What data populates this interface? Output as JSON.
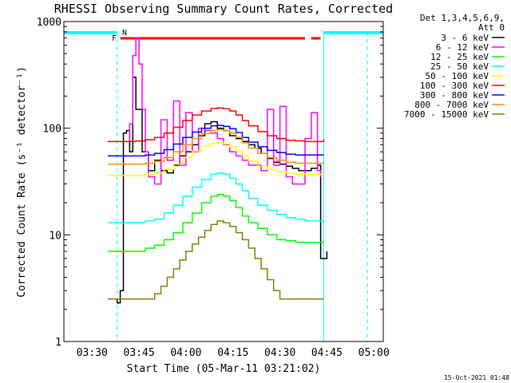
{
  "chart_data": {
    "type": "line",
    "title": "RHESSI Observing Summary Count Rates, Corrected",
    "xlabel": "Start Time (05-Mar-11 03:21:02)",
    "ylabel": "Corrected Count Rate (s⁻¹ detector⁻¹)",
    "y_scale": "log",
    "ylim": [
      1,
      1000
    ],
    "y_ticks": [
      "1",
      "10",
      "100",
      "1000"
    ],
    "xlim": [
      "03:21",
      "05:03"
    ],
    "x_ticks": [
      "03:30",
      "03:45",
      "04:00",
      "04:15",
      "04:30",
      "04:45",
      "05:00"
    ],
    "grid": false,
    "legend_position": "top-right",
    "legend_header": [
      "Det 1,3,4,5,6,9,",
      "Att 0"
    ],
    "series": [
      {
        "name": "3 - 6 keV",
        "color": "#000000",
        "x": [
          "03:36",
          "03:38",
          "03:39",
          "03:40",
          "03:41",
          "03:42",
          "03:43",
          "03:44",
          "03:46",
          "03:48",
          "03:50",
          "03:52",
          "03:54",
          "03:56",
          "03:58",
          "04:00",
          "04:02",
          "04:04",
          "04:06",
          "04:08",
          "04:10",
          "04:12",
          "04:14",
          "04:16",
          "04:18",
          "04:20",
          "04:22",
          "04:24",
          "04:26",
          "04:28",
          "04:30",
          "04:32",
          "04:34",
          "04:36",
          "04:38",
          "04:40",
          "04:42",
          "04:43",
          "04:44",
          "04:45"
        ],
        "y": [
          2.5,
          2.3,
          3.0,
          90,
          95,
          60,
          300,
          150,
          60,
          40,
          50,
          40,
          38,
          45,
          55,
          60,
          70,
          85,
          110,
          115,
          100,
          95,
          85,
          80,
          75,
          70,
          65,
          58,
          52,
          48,
          46,
          44,
          42,
          40,
          40,
          42,
          45,
          6,
          6,
          7
        ]
      },
      {
        "name": "6 - 12 keV",
        "color": "#ff00ff",
        "x": [
          "03:41",
          "03:42",
          "03:43",
          "03:44",
          "03:45",
          "03:46",
          "03:47",
          "03:48",
          "03:50",
          "03:52",
          "03:54",
          "03:56",
          "03:58",
          "04:00",
          "04:02",
          "04:04",
          "04:06",
          "04:08",
          "04:10",
          "04:12",
          "04:14",
          "04:16",
          "04:18",
          "04:20",
          "04:22",
          "04:24",
          "04:26",
          "04:28",
          "04:30",
          "04:32",
          "04:34",
          "04:36",
          "04:38",
          "04:40",
          "04:42",
          "04:43"
        ],
        "y": [
          75,
          110,
          480,
          700,
          400,
          150,
          60,
          35,
          30,
          120,
          50,
          180,
          45,
          140,
          60,
          100,
          95,
          90,
          80,
          70,
          60,
          55,
          50,
          45,
          45,
          40,
          150,
          45,
          160,
          35,
          30,
          30,
          80,
          140,
          40,
          35
        ]
      },
      {
        "name": "12 - 25 keV",
        "color": "#00ff00",
        "x": [
          "03:35",
          "03:38",
          "03:41",
          "03:44",
          "03:47",
          "03:50",
          "03:53",
          "03:56",
          "03:59",
          "04:02",
          "04:05",
          "04:08",
          "04:10",
          "04:12",
          "04:14",
          "04:16",
          "04:18",
          "04:20",
          "04:23",
          "04:26",
          "04:29",
          "04:32",
          "04:35",
          "04:38",
          "04:41",
          "04:44"
        ],
        "y": [
          7,
          7,
          7,
          7,
          7.5,
          8,
          9,
          10.5,
          13,
          16,
          20,
          23,
          24,
          23,
          21,
          18,
          15,
          13,
          11.5,
          10,
          9,
          8.8,
          8.5,
          8.5,
          8.5,
          8.5
        ]
      },
      {
        "name": "25 - 50 keV",
        "color": "#00ffff",
        "x": [
          "03:35",
          "03:38",
          "03:41",
          "03:44",
          "03:47",
          "03:50",
          "03:53",
          "03:56",
          "03:59",
          "04:02",
          "04:05",
          "04:08",
          "04:10",
          "04:12",
          "04:14",
          "04:16",
          "04:18",
          "04:20",
          "04:23",
          "04:26",
          "04:29",
          "04:32",
          "04:35",
          "04:38",
          "04:41",
          "04:44"
        ],
        "y": [
          13,
          13,
          13,
          13,
          13.5,
          14,
          16,
          19,
          23,
          28,
          33,
          37,
          38,
          37,
          34,
          30,
          26,
          22,
          19,
          17,
          15.5,
          14.5,
          14,
          13.5,
          13.5,
          13.5
        ]
      },
      {
        "name": "50 - 100 keV",
        "color": "#ffff00",
        "x": [
          "03:35",
          "03:38",
          "03:41",
          "03:44",
          "03:47",
          "03:50",
          "03:53",
          "03:56",
          "03:59",
          "04:02",
          "04:05",
          "04:08",
          "04:10",
          "04:12",
          "04:14",
          "04:16",
          "04:18",
          "04:20",
          "04:23",
          "04:26",
          "04:29",
          "04:32",
          "04:35",
          "04:38",
          "04:41",
          "04:44"
        ],
        "y": [
          36,
          36,
          36,
          36,
          37,
          38,
          41,
          46,
          53,
          61,
          68,
          72,
          73,
          71,
          67,
          61,
          55,
          49,
          44,
          41,
          39,
          38,
          37,
          37,
          37,
          37
        ]
      },
      {
        "name": "100 - 300 keV",
        "color": "#ff0000",
        "x": [
          "03:35",
          "03:38",
          "03:41",
          "03:44",
          "03:47",
          "03:50",
          "03:53",
          "03:56",
          "03:59",
          "04:02",
          "04:05",
          "04:08",
          "04:10",
          "04:12",
          "04:14",
          "04:16",
          "04:18",
          "04:20",
          "04:23",
          "04:26",
          "04:29",
          "04:32",
          "04:35",
          "04:38",
          "04:41",
          "04:44"
        ],
        "y": [
          75,
          75,
          75,
          76,
          78,
          82,
          90,
          102,
          118,
          133,
          145,
          153,
          155,
          152,
          145,
          133,
          118,
          105,
          93,
          85,
          80,
          77,
          76,
          75,
          75,
          78
        ]
      },
      {
        "name": "300 - 800 keV",
        "color": "#0000ff",
        "x": [
          "03:35",
          "03:38",
          "03:41",
          "03:44",
          "03:47",
          "03:50",
          "03:53",
          "03:56",
          "03:59",
          "04:02",
          "04:05",
          "04:08",
          "04:10",
          "04:12",
          "04:14",
          "04:16",
          "04:18",
          "04:20",
          "04:23",
          "04:26",
          "04:29",
          "04:32",
          "04:35",
          "04:38",
          "04:41",
          "04:44"
        ],
        "y": [
          55,
          55,
          55,
          55,
          56,
          58,
          63,
          71,
          82,
          92,
          100,
          105,
          106,
          104,
          99,
          91,
          82,
          74,
          67,
          62,
          59,
          57,
          56,
          56,
          56,
          56
        ]
      },
      {
        "name": "800 - 7000 keV",
        "color": "#ff8c00",
        "x": [
          "03:35",
          "03:38",
          "03:41",
          "03:44",
          "03:47",
          "03:50",
          "03:53",
          "03:56",
          "03:59",
          "04:02",
          "04:05",
          "04:08",
          "04:10",
          "04:12",
          "04:14",
          "04:16",
          "04:18",
          "04:20",
          "04:23",
          "04:26",
          "04:29",
          "04:32",
          "04:35",
          "04:38",
          "04:41",
          "04:44"
        ],
        "y": [
          46,
          46,
          46,
          46,
          47,
          49,
          53,
          60,
          70,
          80,
          89,
          95,
          97,
          95,
          90,
          82,
          73,
          65,
          58,
          53,
          50,
          48,
          47,
          47,
          47,
          47
        ]
      },
      {
        "name": "7000 - 15000 keV",
        "color": "#808000",
        "x": [
          "03:35",
          "03:37",
          "03:40",
          "03:43",
          "03:46",
          "03:48",
          "03:50",
          "03:52",
          "03:54",
          "03:56",
          "03:58",
          "04:00",
          "04:02",
          "04:04",
          "04:06",
          "04:08",
          "04:10",
          "04:12",
          "04:14",
          "04:16",
          "04:18",
          "04:20",
          "04:22",
          "04:24",
          "04:26",
          "04:28",
          "04:30",
          "04:33",
          "04:36",
          "04:39",
          "04:42",
          "04:44"
        ],
        "y": [
          2.5,
          2.5,
          2.5,
          2.5,
          2.5,
          2.5,
          2.8,
          3.3,
          4,
          4.8,
          5.8,
          7,
          8.2,
          9.5,
          11,
          12.5,
          13.5,
          13,
          12,
          10.5,
          9,
          7.5,
          6,
          4.8,
          3.8,
          3,
          2.5,
          2.5,
          2.5,
          2.5,
          2.5,
          2.5
        ]
      }
    ],
    "flags": [
      {
        "label": "N",
        "color": "#00ffff"
      },
      {
        "label": "F",
        "color": "#ff0000"
      }
    ],
    "timestamp": "15-Oct-2021 01:48"
  }
}
